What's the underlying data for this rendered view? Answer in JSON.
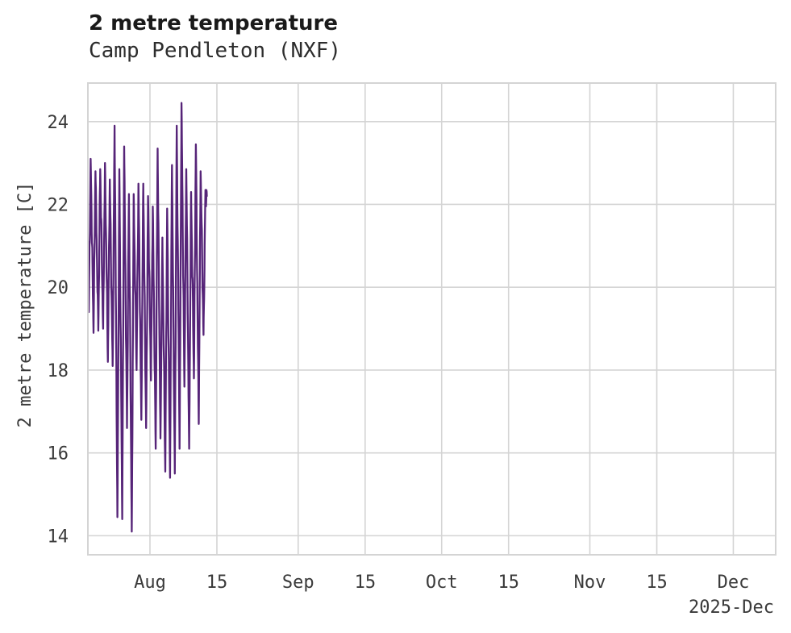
{
  "header": {
    "title": "2 metre temperature",
    "subtitle": "Camp Pendleton (NXF)"
  },
  "chart_data": {
    "type": "line",
    "title": "2 metre temperature",
    "subtitle": "Camp Pendleton (NXF)",
    "ylabel": "2 metre temperature [C]",
    "xlabel": "",
    "x_axis_note": "2025-Dec",
    "legend_position": "none",
    "grid": true,
    "line_color": "#562478",
    "grid_color": "#d4d4d4",
    "yticks": [
      14,
      16,
      18,
      20,
      22,
      24
    ],
    "ylim": [
      13.54,
      24.93
    ],
    "x_unit_days_from": "2025-08-01",
    "xlim_days": [
      -12.98,
      130.86
    ],
    "xticks": [
      {
        "label": "Aug",
        "day": 0
      },
      {
        "label": "15",
        "day": 14
      },
      {
        "label": "Sep",
        "day": 31
      },
      {
        "label": "15",
        "day": 45
      },
      {
        "label": "Oct",
        "day": 61
      },
      {
        "label": "15",
        "day": 75
      },
      {
        "label": "Nov",
        "day": 92
      },
      {
        "label": "15",
        "day": 106
      },
      {
        "label": "Dec",
        "day": 122
      }
    ],
    "series_name": "2 metre temperature, Camp Pendleton (NXF)",
    "sampling": "sub-daily observations Jul 19 - Aug 13 only; rest of axis empty",
    "series_start": {
      "day": -12.7,
      "value": 21.1
    },
    "series_end": {
      "day": 11.9,
      "value": 22.2
    },
    "stats": {
      "min": 14.1,
      "max": 24.45
    },
    "daily_envelope": [
      {
        "date": "2025-07-19",
        "low": 19.4,
        "high": 23.1
      },
      {
        "date": "2025-07-20",
        "low": 18.9,
        "high": 22.8
      },
      {
        "date": "2025-07-21",
        "low": 18.95,
        "high": 22.85
      },
      {
        "date": "2025-07-22",
        "low": 19.0,
        "high": 23.0
      },
      {
        "date": "2025-07-23",
        "low": 18.2,
        "high": 22.6
      },
      {
        "date": "2025-07-24",
        "low": 18.1,
        "high": 23.9
      },
      {
        "date": "2025-07-25",
        "low": 14.45,
        "high": 22.85
      },
      {
        "date": "2025-07-26",
        "low": 14.4,
        "high": 23.4
      },
      {
        "date": "2025-07-27",
        "low": 16.6,
        "high": 22.25
      },
      {
        "date": "2025-07-28",
        "low": 14.1,
        "high": 22.25
      },
      {
        "date": "2025-07-29",
        "low": 18.0,
        "high": 22.5
      },
      {
        "date": "2025-07-30",
        "low": 16.8,
        "high": 22.5
      },
      {
        "date": "2025-07-31",
        "low": 16.6,
        "high": 22.2
      },
      {
        "date": "2025-08-01",
        "low": 17.75,
        "high": 21.95
      },
      {
        "date": "2025-08-02",
        "low": 16.1,
        "high": 23.35
      },
      {
        "date": "2025-08-03",
        "low": 16.35,
        "high": 21.2
      },
      {
        "date": "2025-08-04",
        "low": 15.55,
        "high": 21.9
      },
      {
        "date": "2025-08-05",
        "low": 15.4,
        "high": 22.95
      },
      {
        "date": "2025-08-06",
        "low": 15.5,
        "high": 23.9
      },
      {
        "date": "2025-08-07",
        "low": 16.1,
        "high": 24.45
      },
      {
        "date": "2025-08-08",
        "low": 17.6,
        "high": 22.85
      },
      {
        "date": "2025-08-09",
        "low": 16.1,
        "high": 22.3
      },
      {
        "date": "2025-08-10",
        "low": 17.8,
        "high": 23.45
      },
      {
        "date": "2025-08-11",
        "low": 16.7,
        "high": 22.8
      },
      {
        "date": "2025-08-12",
        "low": 18.85,
        "high": 22.35
      }
    ]
  }
}
